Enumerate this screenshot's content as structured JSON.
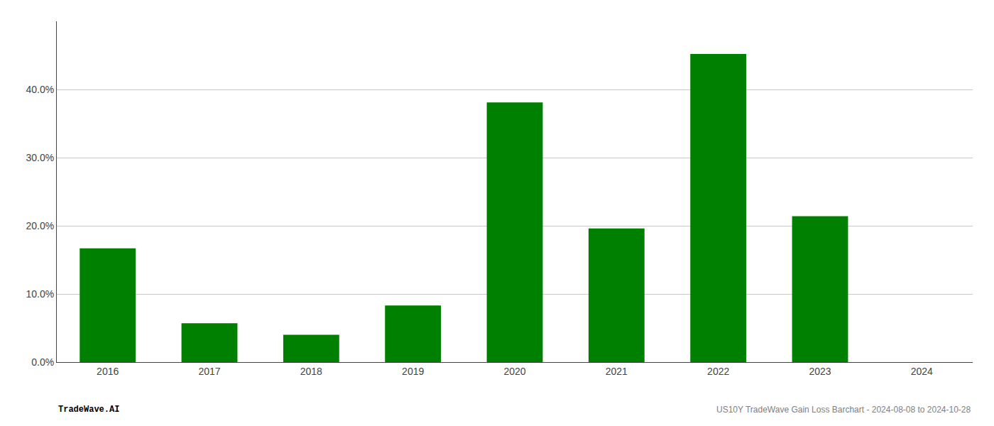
{
  "chart_data": {
    "type": "bar",
    "categories": [
      "2016",
      "2017",
      "2018",
      "2019",
      "2020",
      "2021",
      "2022",
      "2023",
      "2024"
    ],
    "values": [
      0.167,
      0.057,
      0.04,
      0.083,
      0.381,
      0.196,
      0.452,
      0.214,
      0.0
    ],
    "color": "#008000",
    "ylim": [
      0,
      0.5
    ],
    "yticks": [
      {
        "value": 0.0,
        "label": "0.0%"
      },
      {
        "value": 0.1,
        "label": "10.0%"
      },
      {
        "value": 0.2,
        "label": "20.0%"
      },
      {
        "value": 0.3,
        "label": "30.0%"
      },
      {
        "value": 0.4,
        "label": "40.0%"
      }
    ],
    "grid": true,
    "annotations": [
      {
        "text": "TradeWave.AI",
        "color": "#000000"
      },
      {
        "text": "US10Y TradeWave Gain Loss Barchart - 2024-08-08 to 2024-10-28",
        "color": "#808080"
      }
    ]
  }
}
